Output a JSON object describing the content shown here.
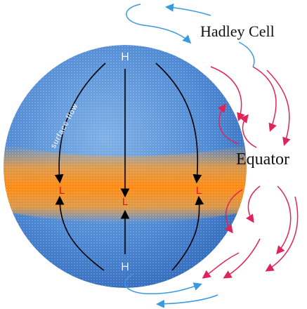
{
  "labels": {
    "title": "Hadley Cell",
    "equator": "Equator",
    "surface_flow": "surface flow",
    "high_north": "H",
    "high_south": "H",
    "lows": [
      "L",
      "L",
      "L"
    ]
  }
}
